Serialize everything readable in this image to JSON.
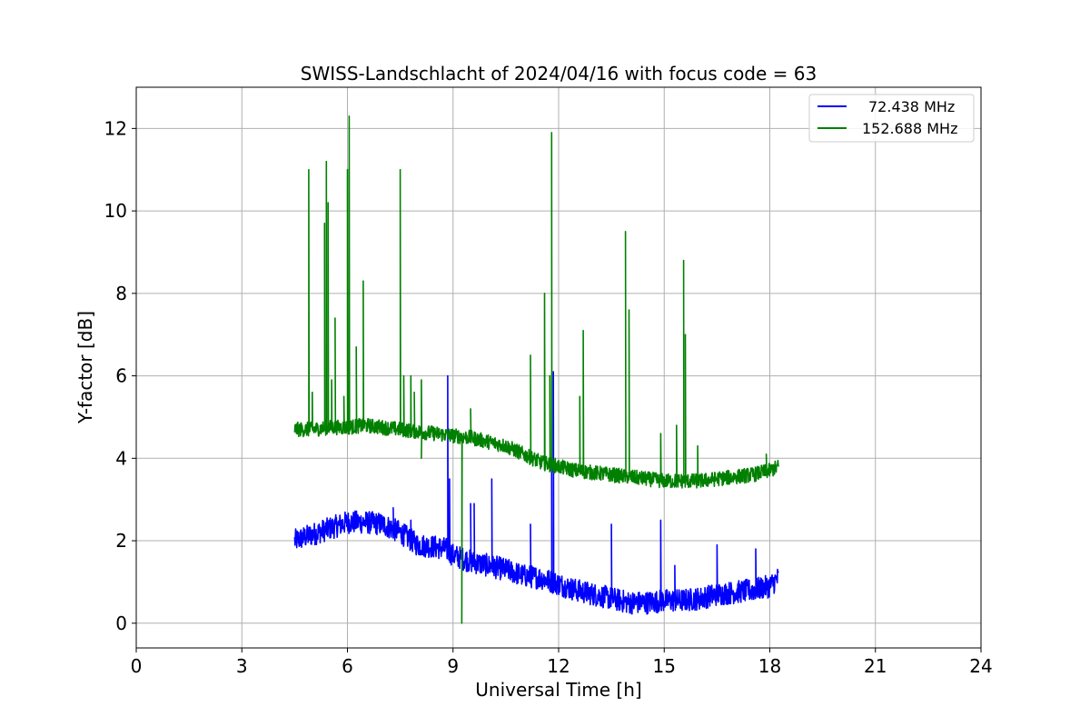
{
  "chart_data": {
    "type": "line",
    "title": "SWISS-Landschlacht of 2024/04/16 with focus code = 63",
    "xlabel": "Universal Time [h]",
    "ylabel": "Y-factor [dB]",
    "xlim": [
      0,
      24
    ],
    "ylim": [
      -0.6,
      13.0
    ],
    "x_ticks": [
      0,
      3,
      6,
      9,
      12,
      15,
      18,
      21,
      24
    ],
    "y_ticks": [
      0,
      2,
      4,
      6,
      8,
      10,
      12
    ],
    "x_tick_labels": [
      "0",
      "3",
      "6",
      "9",
      "12",
      "15",
      "18",
      "21",
      "24"
    ],
    "y_tick_labels": [
      "0",
      "2",
      "4",
      "6",
      "8",
      "10",
      "12"
    ],
    "grid": true,
    "legend_position": "top-right",
    "series": [
      {
        "name": "72.438 MHz",
        "color": "#0000ff",
        "baseline": [
          [
            4.5,
            2.0
          ],
          [
            5.0,
            2.15
          ],
          [
            5.5,
            2.3
          ],
          [
            6.0,
            2.45
          ],
          [
            6.5,
            2.45
          ],
          [
            7.0,
            2.4
          ],
          [
            7.5,
            2.2
          ],
          [
            8.0,
            1.9
          ],
          [
            8.5,
            1.85
          ],
          [
            8.8,
            1.8
          ],
          [
            9.0,
            1.65
          ],
          [
            9.5,
            1.5
          ],
          [
            10.0,
            1.4
          ],
          [
            10.5,
            1.3
          ],
          [
            11.0,
            1.15
          ],
          [
            11.5,
            1.1
          ],
          [
            12.0,
            0.95
          ],
          [
            12.5,
            0.8
          ],
          [
            13.0,
            0.7
          ],
          [
            13.5,
            0.6
          ],
          [
            14.0,
            0.5
          ],
          [
            14.5,
            0.5
          ],
          [
            15.0,
            0.55
          ],
          [
            15.5,
            0.55
          ],
          [
            16.0,
            0.6
          ],
          [
            16.5,
            0.7
          ],
          [
            17.0,
            0.75
          ],
          [
            17.5,
            0.8
          ],
          [
            18.0,
            0.9
          ],
          [
            18.25,
            1.1
          ]
        ],
        "noise": 0.28,
        "spikes": [
          [
            7.3,
            2.8
          ],
          [
            7.8,
            2.5
          ],
          [
            8.85,
            6.0
          ],
          [
            8.9,
            3.5
          ],
          [
            9.5,
            2.9
          ],
          [
            9.6,
            2.9
          ],
          [
            10.1,
            3.5
          ],
          [
            11.2,
            2.4
          ],
          [
            11.8,
            3.9
          ],
          [
            11.85,
            6.1
          ],
          [
            13.5,
            2.4
          ],
          [
            14.9,
            2.5
          ],
          [
            15.3,
            1.4
          ],
          [
            16.5,
            1.9
          ],
          [
            17.6,
            1.8
          ]
        ]
      },
      {
        "name": "152.688 MHz",
        "color": "#008000",
        "baseline": [
          [
            4.5,
            4.7
          ],
          [
            5.0,
            4.7
          ],
          [
            5.5,
            4.75
          ],
          [
            6.0,
            4.75
          ],
          [
            6.5,
            4.8
          ],
          [
            7.0,
            4.75
          ],
          [
            7.5,
            4.7
          ],
          [
            8.0,
            4.65
          ],
          [
            8.5,
            4.6
          ],
          [
            9.0,
            4.55
          ],
          [
            9.5,
            4.5
          ],
          [
            10.0,
            4.4
          ],
          [
            10.5,
            4.3
          ],
          [
            11.0,
            4.1
          ],
          [
            11.5,
            3.9
          ],
          [
            12.0,
            3.8
          ],
          [
            12.5,
            3.7
          ],
          [
            13.0,
            3.65
          ],
          [
            13.5,
            3.6
          ],
          [
            14.0,
            3.55
          ],
          [
            14.5,
            3.5
          ],
          [
            15.0,
            3.45
          ],
          [
            15.5,
            3.45
          ],
          [
            16.0,
            3.45
          ],
          [
            16.5,
            3.5
          ],
          [
            17.0,
            3.55
          ],
          [
            17.5,
            3.6
          ],
          [
            18.0,
            3.7
          ],
          [
            18.25,
            3.8
          ]
        ],
        "noise": 0.18,
        "spikes": [
          [
            4.9,
            11.0
          ],
          [
            5.0,
            5.6
          ],
          [
            5.35,
            9.7
          ],
          [
            5.4,
            11.2
          ],
          [
            5.45,
            10.2
          ],
          [
            5.55,
            5.9
          ],
          [
            5.65,
            7.4
          ],
          [
            5.9,
            5.5
          ],
          [
            6.0,
            11.0
          ],
          [
            6.05,
            12.3
          ],
          [
            6.25,
            6.7
          ],
          [
            6.45,
            8.3
          ],
          [
            7.5,
            11.0
          ],
          [
            7.6,
            6.0
          ],
          [
            7.8,
            6.0
          ],
          [
            7.9,
            5.6
          ],
          [
            8.1,
            5.9
          ],
          [
            9.5,
            5.2
          ],
          [
            11.2,
            6.5
          ],
          [
            11.6,
            8.0
          ],
          [
            11.75,
            6.0
          ],
          [
            11.8,
            11.9
          ],
          [
            12.6,
            5.5
          ],
          [
            12.7,
            7.1
          ],
          [
            13.9,
            9.5
          ],
          [
            14.0,
            7.6
          ],
          [
            14.9,
            4.6
          ],
          [
            15.35,
            4.8
          ],
          [
            15.55,
            8.8
          ],
          [
            15.6,
            7.0
          ],
          [
            15.95,
            4.3
          ],
          [
            17.9,
            4.1
          ]
        ],
        "dips": [
          [
            8.1,
            4.0
          ],
          [
            9.25,
            0.0
          ]
        ]
      }
    ]
  }
}
